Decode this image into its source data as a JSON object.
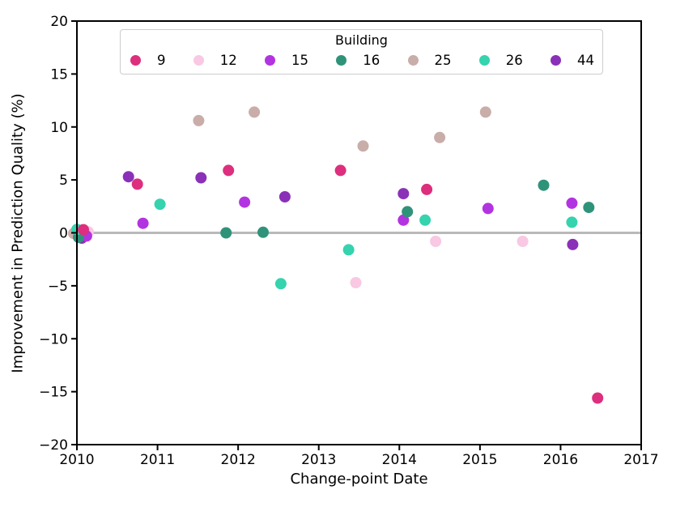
{
  "figure": {
    "background": "#ffffff",
    "axis_color": "#000000",
    "zero_line_color": "#b9b9b9"
  },
  "chart_data": {
    "type": "scatter",
    "title": "",
    "xlabel": "Change-point Date",
    "ylabel": "Improvement in Prediction Quality (%)",
    "xlim": [
      2010,
      2017
    ],
    "ylim": [
      -20,
      20
    ],
    "xticks": [
      2010,
      2011,
      2012,
      2013,
      2014,
      2015,
      2016,
      2017
    ],
    "yticks": [
      -20,
      -15,
      -10,
      -5,
      0,
      5,
      10,
      15,
      20
    ],
    "grid": false,
    "zero_line_y": 0,
    "marker_radius": 7,
    "legend": {
      "title": "Building",
      "position": "upper center"
    },
    "z_order": [
      "44",
      "25",
      "12",
      "15",
      "16",
      "26",
      "9"
    ],
    "series": [
      {
        "name": "9",
        "color": "#de2e7e",
        "points": [
          [
            2010.08,
            0.3
          ],
          [
            2010.75,
            4.6
          ],
          [
            2011.88,
            5.9
          ],
          [
            2013.27,
            5.9
          ],
          [
            2014.34,
            4.1
          ],
          [
            2016.46,
            -15.6
          ]
        ]
      },
      {
        "name": "12",
        "color": "#f9c8e3",
        "points": [
          [
            2010.14,
            0.1
          ],
          [
            2013.46,
            -4.7
          ],
          [
            2014.45,
            -0.8
          ],
          [
            2015.53,
            -0.8
          ]
        ]
      },
      {
        "name": "15",
        "color": "#b234e0",
        "points": [
          [
            2010.12,
            -0.3
          ],
          [
            2010.82,
            0.9
          ],
          [
            2012.08,
            2.9
          ],
          [
            2014.05,
            1.2
          ],
          [
            2015.1,
            2.3
          ],
          [
            2016.14,
            2.8
          ]
        ]
      },
      {
        "name": "16",
        "color": "#2f937a",
        "points": [
          [
            2010.02,
            -0.42
          ],
          [
            2011.85,
            0.0
          ],
          [
            2012.31,
            0.05
          ],
          [
            2014.1,
            2.0
          ],
          [
            2015.79,
            4.5
          ],
          [
            2016.35,
            2.4
          ]
        ]
      },
      {
        "name": "25",
        "color": "#c9ada9",
        "points": [
          [
            2009.96,
            -0.05
          ],
          [
            2011.51,
            10.6
          ],
          [
            2012.2,
            11.4
          ],
          [
            2013.55,
            8.2
          ],
          [
            2014.5,
            9.0
          ],
          [
            2015.07,
            11.4
          ]
        ]
      },
      {
        "name": "26",
        "color": "#35d3ae",
        "points": [
          [
            2010.0,
            0.32
          ],
          [
            2011.03,
            2.7
          ],
          [
            2012.53,
            -4.8
          ],
          [
            2013.37,
            -1.6
          ],
          [
            2014.32,
            1.2
          ],
          [
            2016.14,
            1.0
          ]
        ]
      },
      {
        "name": "44",
        "color": "#8a31b8",
        "points": [
          [
            2010.06,
            -0.5
          ],
          [
            2010.64,
            5.3
          ],
          [
            2011.54,
            5.2
          ],
          [
            2012.58,
            3.4
          ],
          [
            2014.05,
            3.7
          ],
          [
            2016.15,
            -1.1
          ]
        ]
      }
    ]
  }
}
